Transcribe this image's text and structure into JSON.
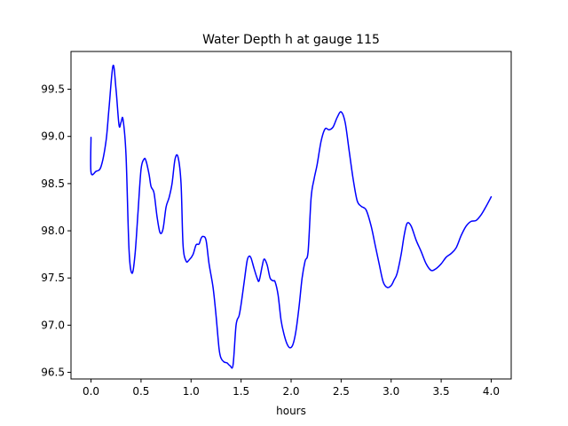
{
  "chart_data": {
    "type": "line",
    "title": "Water Depth h at gauge 115",
    "xlabel": "hours",
    "ylabel": "",
    "xlim": [
      -0.2,
      4.2
    ],
    "ylim": [
      96.43,
      99.9
    ],
    "xticks": [
      0.0,
      0.5,
      1.0,
      1.5,
      2.0,
      2.5,
      3.0,
      3.5,
      4.0
    ],
    "xtick_labels": [
      "0.0",
      "0.5",
      "1.0",
      "1.5",
      "2.0",
      "2.5",
      "3.0",
      "3.5",
      "4.0"
    ],
    "yticks": [
      96.5,
      97.0,
      97.5,
      98.0,
      98.5,
      99.0,
      99.5
    ],
    "ytick_labels": [
      "96.5",
      "97.0",
      "97.5",
      "98.0",
      "98.5",
      "99.0",
      "99.5"
    ],
    "grid": false,
    "line_color": "#0000ff",
    "series": [
      {
        "x": [
          0.0,
          0.0,
          0.05,
          0.1,
          0.15,
          0.18,
          0.22,
          0.25,
          0.28,
          0.3,
          0.32,
          0.35,
          0.38,
          0.41,
          0.44,
          0.47,
          0.5,
          0.53,
          0.55,
          0.58,
          0.6,
          0.63,
          0.66,
          0.69,
          0.72,
          0.75,
          0.78,
          0.81,
          0.84,
          0.87,
          0.9,
          0.92,
          0.95,
          0.98,
          1.02,
          1.05,
          1.08,
          1.1,
          1.12,
          1.15,
          1.18,
          1.22,
          1.25,
          1.28,
          1.3,
          1.33,
          1.36,
          1.39,
          1.42,
          1.45,
          1.48,
          1.5,
          1.53,
          1.56,
          1.58,
          1.6,
          1.63,
          1.66,
          1.68,
          1.71,
          1.73,
          1.76,
          1.79,
          1.82,
          1.84,
          1.87,
          1.9,
          1.93,
          1.96,
          1.99,
          2.02,
          2.05,
          2.08,
          2.11,
          2.14,
          2.17,
          2.2,
          2.23,
          2.26,
          2.3,
          2.34,
          2.38,
          2.42,
          2.46,
          2.5,
          2.54,
          2.58,
          2.62,
          2.66,
          2.7,
          2.75,
          2.8,
          2.84,
          2.88,
          2.92,
          2.96,
          3.0,
          3.03,
          3.06,
          3.1,
          3.13,
          3.16,
          3.2,
          3.25,
          3.3,
          3.35,
          3.4,
          3.45,
          3.5,
          3.55,
          3.6,
          3.65,
          3.7,
          3.75,
          3.8,
          3.85,
          3.9,
          3.95,
          4.0
        ],
        "y": [
          98.99,
          98.62,
          98.63,
          98.68,
          98.95,
          99.3,
          99.75,
          99.5,
          99.12,
          99.15,
          99.18,
          98.8,
          97.8,
          97.55,
          97.75,
          98.2,
          98.65,
          98.76,
          98.74,
          98.6,
          98.47,
          98.4,
          98.15,
          97.98,
          98.02,
          98.25,
          98.35,
          98.5,
          98.76,
          98.78,
          98.5,
          97.85,
          97.68,
          97.69,
          97.75,
          97.85,
          97.86,
          97.92,
          97.94,
          97.9,
          97.65,
          97.4,
          97.1,
          96.75,
          96.65,
          96.61,
          96.6,
          96.57,
          96.58,
          97.0,
          97.1,
          97.22,
          97.45,
          97.68,
          97.73,
          97.71,
          97.6,
          97.5,
          97.47,
          97.62,
          97.7,
          97.64,
          97.5,
          97.47,
          97.46,
          97.32,
          97.05,
          96.9,
          96.8,
          96.76,
          96.8,
          96.95,
          97.2,
          97.5,
          97.68,
          97.78,
          98.35,
          98.55,
          98.7,
          98.95,
          99.08,
          99.07,
          99.1,
          99.2,
          99.26,
          99.15,
          98.85,
          98.55,
          98.32,
          98.26,
          98.22,
          98.05,
          97.85,
          97.65,
          97.46,
          97.4,
          97.42,
          97.48,
          97.55,
          97.75,
          97.95,
          98.08,
          98.05,
          97.9,
          97.78,
          97.65,
          97.58,
          97.6,
          97.65,
          97.72,
          97.76,
          97.82,
          97.95,
          98.05,
          98.1,
          98.11,
          98.17,
          98.26,
          98.36
        ]
      }
    ]
  }
}
